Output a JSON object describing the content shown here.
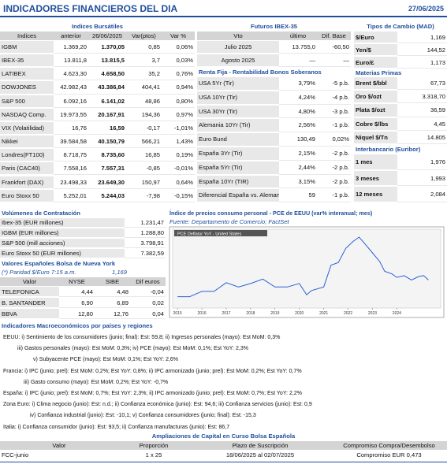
{
  "header": {
    "title": "INDICADORES FINANCIEROS DEL DIA",
    "date": "27/06/2025"
  },
  "indices": {
    "title": "Indices Bursátiles",
    "headers": [
      "Indices",
      "anterior",
      "26/06/2025",
      "Var(ptos)",
      "Var %"
    ],
    "rows": [
      [
        "IGBM",
        "1.369,20",
        "1.370,05",
        "0,85",
        "0,06%"
      ],
      [
        "IBEX-35",
        "13.811,8",
        "13.815,5",
        "3,7",
        "0,03%"
      ],
      [
        "LATIBEX",
        "4.623,30",
        "4.658,50",
        "35,2",
        "0,76%"
      ],
      [
        "DOWJONES",
        "42.982,43",
        "43.386,84",
        "404,41",
        "0,94%"
      ],
      [
        "S&P 500",
        "6.092,16",
        "6.141,02",
        "48,86",
        "0,80%"
      ],
      [
        "NASDAQ Comp.",
        "19.973,55",
        "20.167,91",
        "194,36",
        "0,97%"
      ],
      [
        "VIX (Volatilidad)",
        "16,76",
        "16,59",
        "-0,17",
        "-1,01%"
      ],
      [
        "Nikkei",
        "39.584,58",
        "40.150,79",
        "566,21",
        "1,43%"
      ],
      [
        "Londres(FT100)",
        "8.718,75",
        "8.735,60",
        "16,85",
        "0,19%"
      ],
      [
        "Paris (CAC40)",
        "7.558,16",
        "7.557,31",
        "-0,85",
        "-0,01%"
      ],
      [
        "Frankfort (DAX)",
        "23.498,33",
        "23.649,30",
        "150,97",
        "0,64%"
      ],
      [
        "Euro Stoxx 50",
        "5.252,01",
        "5.244,03",
        "-7,98",
        "-0,15%"
      ]
    ]
  },
  "futuros": {
    "title": "Futuros  IBEX-35",
    "headers": [
      "Vto",
      "último",
      "Dif. Base"
    ],
    "rows": [
      [
        "Julio 2025",
        "13.755,0",
        "-60,50"
      ],
      [
        "Agosto 2025",
        "—",
        "—"
      ]
    ]
  },
  "renta_fija": {
    "title": "Renta Fija - Rentabilidad Bonos Soberanos",
    "rows": [
      [
        "USA 5Yr (Tir)",
        "3,79%",
        "-5 p.b."
      ],
      [
        "USA 10Yr (Tir)",
        "4,24%",
        "-4 p.b."
      ],
      [
        "USA 30Yr (Tir)",
        "4,80%",
        "-3 p.b."
      ],
      [
        "Alemania 10Yr (Tir)",
        "2,56%",
        "-1 p.b."
      ],
      [
        "Euro Bund",
        "130,49",
        "0,02%"
      ],
      [
        "España 3Yr (Tir)",
        "2,15%",
        "-2 p.b."
      ],
      [
        "España 5Yr (Tir)",
        "2,44%",
        "-2 p.b."
      ],
      [
        "España 10Yr (TIR)",
        "3,15%",
        "-2 p.b."
      ],
      [
        "Diferencial España vs. Alemania",
        "59",
        "-1 p.b."
      ]
    ]
  },
  "tipos_cambio": {
    "title": "Tipos de Cambio (MAD)",
    "rows": [
      [
        "$/Euro",
        "1,169"
      ],
      [
        "Yen/$",
        "144,52"
      ],
      [
        "Euro/£",
        "1,173"
      ]
    ]
  },
  "materias_primas": {
    "title": "Materias Primas",
    "rows": [
      [
        "Brent $/bbl",
        "67,73"
      ],
      [
        "Oro $/ozt",
        "3.318,70"
      ],
      [
        "Plata $/ozt",
        "36,59"
      ],
      [
        "Cobre $/lbs",
        "4,45"
      ],
      [
        "Niquel $/Tn",
        "14.805"
      ]
    ]
  },
  "euribor": {
    "title": "Interbancario (Euribor)",
    "rows": [
      [
        "1 mes",
        "1,976"
      ],
      [
        "3 meses",
        "1,993"
      ],
      [
        "12 meses",
        "2,084"
      ]
    ]
  },
  "volumenes": {
    "title": "Volúmenes de Contratación",
    "rows": [
      [
        "Ibex-35 (EUR millones)",
        "1.231,47"
      ],
      [
        "IGBM (EUR millones)",
        "1.288,80"
      ],
      [
        "S&P 500 (mill acciones)",
        "3.798,91"
      ],
      [
        "Euro Stoxx 50 (EUR millones)",
        "7.382,59"
      ]
    ]
  },
  "nyse": {
    "title": "Valores Españoles Bolsa de Nueva York",
    "note": "(*) Paridad $/Euro 7:15 a.m.",
    "note_value": "1,169",
    "headers": [
      "Valor",
      "NYSE",
      "SIBE",
      "Dif euros"
    ],
    "rows": [
      [
        "TELEFONICA",
        "4,44",
        "4,48",
        "-0,04"
      ],
      [
        "B. SANTANDER",
        "6,90",
        "6,89",
        "0,02"
      ],
      [
        "BBVA",
        "12,80",
        "12,76",
        "0,04"
      ]
    ]
  },
  "chart_data": {
    "type": "line",
    "title": "Índice de precios consumo personal - PCE de EEUU (var% interanual; mes)",
    "subtitle": "Fuente: Departamento de Comercio; FactSet",
    "x": [
      2015.0,
      2015.5,
      2016.0,
      2016.5,
      2017.0,
      2017.5,
      2018.0,
      2018.5,
      2019.0,
      2019.5,
      2020.0,
      2020.3,
      2020.5,
      2021.0,
      2021.3,
      2021.6,
      2021.9,
      2022.2,
      2022.45,
      2022.7,
      2023.0,
      2023.3,
      2023.5,
      2023.8,
      2024.0,
      2024.3,
      2024.6,
      2024.9,
      2025.1,
      2025.3
    ],
    "series": [
      {
        "name": "PCE Deflator YoY - United States",
        "color": "#2a5fd6",
        "values": [
          0.3,
          0.3,
          0.9,
          0.9,
          1.9,
          1.4,
          1.8,
          2.3,
          1.4,
          1.4,
          1.8,
          0.5,
          1.0,
          1.4,
          3.9,
          4.2,
          5.8,
          6.6,
          7.1,
          6.3,
          5.3,
          4.3,
          3.2,
          2.9,
          2.5,
          2.7,
          2.2,
          2.6,
          2.7,
          2.2
        ]
      }
    ],
    "xlim": [
      2014.8,
      2025.8
    ],
    "ylim": [
      -1,
      8
    ],
    "xticks": [
      2015,
      2016,
      2017,
      2018,
      2019,
      2020,
      2021,
      2022,
      2023,
      2024
    ]
  },
  "macro": {
    "title": "Indicadores Macroeconómicos por países y regiones",
    "lines": [
      "EEUU: i) Sentimiento de los consumidores (junio; final): Est: 59,8; ii) Ingresos personales (mayo): Est MoM: 0,3%",
      "iii) Gastos personales (mayo): Est MoM: 0,3%; iv) PCE (mayo): Est MoM: 0,1%; Est YoY: 2,3%",
      "v) Subyacente PCE (mayo): Est MoM: 0,1%; Est YoY: 2,6%",
      "Francia: i) IPC (junio; prel): Est MoM: 0,2%; Est YoY: 0,8%; ii) IPC armonizado (junio; prel): Est MoM: 0,2%; Est YoY: 0,7%",
      "iii) Gasto consumo (mayo): Est MoM: 0,2%; Est YoY: -0,7%",
      "España: i) IPC (junio; prel): Est MoM: 0,7%; Est YoY: 2,3%; ii) IPC armonizado (junio; prel): Est MoM: 0,7%; Est YoY: 2,2%",
      "Zona Euro: i) Clima negocio (junio): Est: n.d.; ii) Confianza económica (junio): Est: 94,6; iii) Confianza servicios (junio): Est: 0,9",
      "iv) Confianza industrial (junio): Est: -10,1; v) Confianza consumidores (junio; final): Est: -15,3",
      "Italia: i) Confianza consumidor (junio): Est: 93,5; ii) Confianza manufacturas (junio): Est: 86,7"
    ]
  },
  "ampliaciones": {
    "title": "Ampliaciones de Capital en Curso Bolsa Española",
    "headers": [
      "Valor",
      "Proporción",
      "Plazo de Suscripción",
      "Compromiso Compra/Desembolso"
    ],
    "rows": [
      [
        "FCC-junio",
        "1 x 25",
        "18/06/2025 al 02/07/2025",
        "Compromiso EUR 0,473"
      ]
    ]
  }
}
